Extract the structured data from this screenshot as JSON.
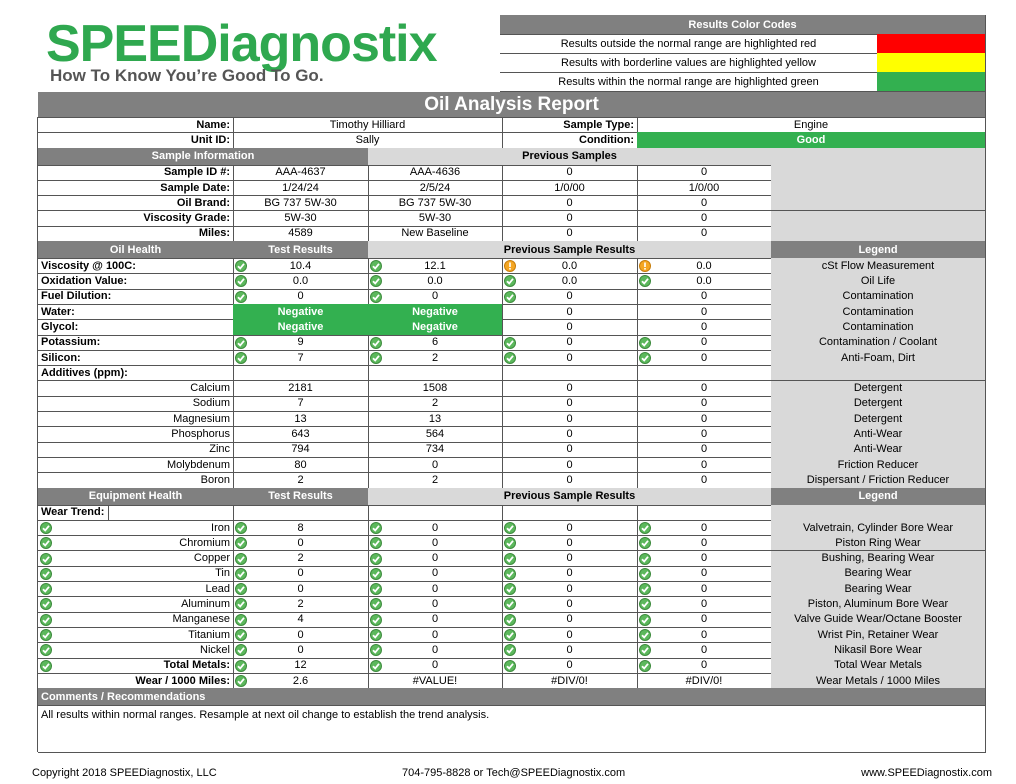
{
  "header": {
    "logo_title": "SPEEDiagnostix",
    "tagline": "How To Know You’re Good To Go.",
    "color_codes": {
      "title": "Results Color Codes",
      "items": [
        {
          "text": "Results outside the normal range are highlighted red",
          "color": "#ff0000"
        },
        {
          "text": "Results with borderline values are highlighted yellow",
          "color": "#ffff00"
        },
        {
          "text": "Results within the normal range are highlighted green",
          "color": "#33b050"
        }
      ]
    }
  },
  "report": {
    "title": "Oil Analysis Report",
    "name_label": "Name:",
    "name": "Timothy Hilliard",
    "unit_label": "Unit ID:",
    "unit": "Sally",
    "sample_type_label": "Sample Type:",
    "sample_type": "Engine",
    "condition_label": "Condition:",
    "condition": "Good",
    "condition_color": "#33b050"
  },
  "sample_info": {
    "headers": [
      "Sample Information",
      "Previous Samples"
    ],
    "rows": [
      {
        "label": "Sample ID #:",
        "values": [
          "AAA-4637",
          "AAA-4636",
          0,
          0
        ]
      },
      {
        "label": "Sample Date:",
        "values": [
          "1/24/24",
          "2/5/24",
          "1/0/00",
          "1/0/00"
        ]
      },
      {
        "label": "Oil Brand:",
        "values": [
          "BG 737 5W-30",
          "BG 737 5W-30",
          0,
          0
        ]
      },
      {
        "label": "Viscosity Grade:",
        "values": [
          "5W-30",
          "5W-30",
          0,
          0
        ]
      },
      {
        "label": "Miles:",
        "values": [
          4589,
          "New Baseline",
          0,
          0
        ]
      }
    ]
  },
  "oil_health": {
    "headers": [
      "Oil Health",
      "Test Results",
      "Previous Sample Results",
      "Legend"
    ],
    "rows": [
      {
        "label": "Viscosity @ 100C:",
        "values": [
          "10.4",
          "12.1",
          "0.0",
          "0.0"
        ],
        "icons": [
          "check",
          "check",
          "caution",
          "caution"
        ],
        "legend": "cSt Flow Measurement"
      },
      {
        "label": "Oxidation Value:",
        "values": [
          "0.0",
          "0.0",
          "0.0",
          "0.0"
        ],
        "icons": [
          "check",
          "check",
          "check",
          "check"
        ],
        "legend": "Oil Life"
      },
      {
        "label": "Fuel Dilution:",
        "values": [
          0,
          0,
          0,
          0
        ],
        "icons": [
          "check",
          "check",
          "check",
          null
        ],
        "legend": "Contamination"
      },
      {
        "label": "Water:",
        "values": [
          "Negative",
          "Negative",
          0,
          0
        ],
        "fills": [
          "#33b050",
          "#33b050",
          null,
          null
        ],
        "legend": "Contamination"
      },
      {
        "label": "Glycol:",
        "values": [
          "Negative",
          "Negative",
          0,
          0
        ],
        "fills": [
          "#33b050",
          "#33b050",
          null,
          null
        ],
        "legend": "Contamination"
      },
      {
        "label": "Potassium:",
        "values": [
          9,
          6,
          0,
          0
        ],
        "icons": [
          "check",
          "check",
          "check",
          "check"
        ],
        "legend": "Contamination / Coolant"
      },
      {
        "label": "Silicon:",
        "values": [
          7,
          2,
          0,
          0
        ],
        "icons": [
          "check",
          "check",
          "check",
          "check"
        ],
        "legend": "Anti-Foam, Dirt"
      }
    ],
    "additives_label": "Additives (ppm):",
    "additives": [
      {
        "label": "Calcium",
        "values": [
          2181,
          1508,
          0,
          0
        ],
        "legend": "Detergent"
      },
      {
        "label": "Sodium",
        "values": [
          7,
          2,
          0,
          0
        ],
        "legend": "Detergent"
      },
      {
        "label": "Magnesium",
        "values": [
          13,
          13,
          0,
          0
        ],
        "legend": "Detergent"
      },
      {
        "label": "Phosphorus",
        "values": [
          643,
          564,
          0,
          0
        ],
        "legend": "Anti-Wear"
      },
      {
        "label": "Zinc",
        "values": [
          794,
          734,
          0,
          0
        ],
        "legend": "Anti-Wear"
      },
      {
        "label": "Molybdenum",
        "values": [
          80,
          0,
          0,
          0
        ],
        "legend": "Friction Reducer"
      },
      {
        "label": "Boron",
        "values": [
          2,
          2,
          0,
          0
        ],
        "legend": "Dispersant / Friction Reducer"
      }
    ]
  },
  "equipment_health": {
    "headers": [
      "Equipment Health",
      "Test Results",
      "Previous Sample Results",
      "Legend"
    ],
    "wear_trend_label": "Wear Trend:",
    "rows": [
      {
        "label": "Iron",
        "values": [
          8,
          0,
          0,
          0
        ],
        "trend": "check",
        "icons": [
          "check",
          "check",
          "check",
          "check"
        ],
        "legend": "Valvetrain, Cylinder Bore Wear"
      },
      {
        "label": "Chromium",
        "values": [
          0,
          0,
          0,
          0
        ],
        "trend": "check",
        "icons": [
          "check",
          "check",
          "check",
          "check"
        ],
        "legend": "Piston Ring Wear"
      },
      {
        "label": "Copper",
        "values": [
          2,
          0,
          0,
          0
        ],
        "trend": "check",
        "icons": [
          "check",
          "check",
          "check",
          "check"
        ],
        "legend": "Bushing, Bearing Wear"
      },
      {
        "label": "Tin",
        "values": [
          0,
          0,
          0,
          0
        ],
        "trend": "check",
        "icons": [
          "check",
          "check",
          "check",
          "check"
        ],
        "legend": "Bearing Wear"
      },
      {
        "label": "Lead",
        "values": [
          0,
          0,
          0,
          0
        ],
        "trend": "check",
        "icons": [
          "check",
          "check",
          "check",
          "check"
        ],
        "legend": "Bearing Wear"
      },
      {
        "label": "Aluminum",
        "values": [
          2,
          0,
          0,
          0
        ],
        "trend": "check",
        "icons": [
          "check",
          "check",
          "check",
          "check"
        ],
        "legend": "Piston, Aluminum Bore Wear"
      },
      {
        "label": "Manganese",
        "values": [
          4,
          0,
          0,
          0
        ],
        "trend": "check",
        "icons": [
          "check",
          "check",
          "check",
          "check"
        ],
        "legend": "Valve Guide Wear/Octane Booster"
      },
      {
        "label": "Titanium",
        "values": [
          0,
          0,
          0,
          0
        ],
        "trend": "check",
        "icons": [
          "check",
          "check",
          "check",
          "check"
        ],
        "legend": "Wrist Pin, Retainer Wear"
      },
      {
        "label": "Nickel",
        "values": [
          0,
          0,
          0,
          0
        ],
        "trend": "check",
        "icons": [
          "check",
          "check",
          "check",
          "check"
        ],
        "legend": "Nikasil Bore Wear"
      },
      {
        "label": "Total Metals:",
        "values": [
          12,
          0,
          0,
          0
        ],
        "trend": "check",
        "icons": [
          "check",
          "check",
          "check",
          "check"
        ],
        "legend": "Total Wear Metals",
        "bold": true
      },
      {
        "label": "Wear / 1000 Miles:",
        "values": [
          "2.6",
          "#VALUE!",
          "#DIV/0!",
          "#DIV/0!"
        ],
        "icons": [
          "check",
          null,
          null,
          null
        ],
        "legend": "Wear Metals / 1000 Miles",
        "bold": true
      }
    ]
  },
  "comments": {
    "title": "Comments / Recommendations",
    "text": "All results within normal ranges. Resample at next oil change to establish the trend analysis."
  },
  "footer": {
    "copyright": "Copyright 2018 SPEEDiagnostix, LLC",
    "contact": "704-795-8828 or Tech@SPEEDiagnostix.com",
    "website": "www.SPEEDiagnostix.com"
  }
}
